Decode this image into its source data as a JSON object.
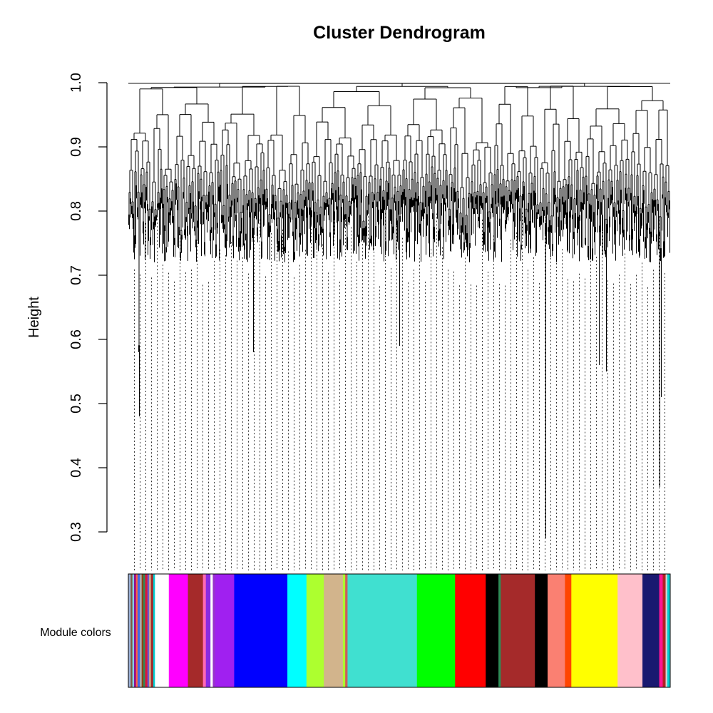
{
  "chart_data": {
    "type": "dendrogram",
    "title": "Cluster Dendrogram",
    "ylabel": "Height",
    "ylim": [
      0.3,
      1.0
    ],
    "yticks": [
      "0.3",
      "0.4",
      "0.5",
      "0.6",
      "0.7",
      "0.8",
      "0.9",
      "1.0"
    ],
    "merge_heights_min": [
      0.29,
      0.37,
      0.48,
      0.55,
      0.56,
      0.58,
      0.59
    ],
    "module_bar_label": "Module colors",
    "modules": [
      {
        "color": "#9bb0d8",
        "fraction": 0.004
      },
      {
        "color": "#7a5c3a",
        "fraction": 0.003
      },
      {
        "color": "#87ceeb",
        "fraction": 0.003
      },
      {
        "color": "#8b008b",
        "fraction": 0.003
      },
      {
        "color": "#ff6347",
        "fraction": 0.003
      },
      {
        "color": "#4169e1",
        "fraction": 0.004
      },
      {
        "color": "#b0b0b0",
        "fraction": 0.003
      },
      {
        "color": "#8b4513",
        "fraction": 0.003
      },
      {
        "color": "#2e8b57",
        "fraction": 0.003
      },
      {
        "color": "#dc143c",
        "fraction": 0.004
      },
      {
        "color": "#6a5acd",
        "fraction": 0.003
      },
      {
        "color": "#d2b48c",
        "fraction": 0.003
      },
      {
        "color": "#a52a2a",
        "fraction": 0.004
      },
      {
        "color": "#00ced1",
        "fraction": 0.003
      },
      {
        "color": "#ffffff",
        "fraction": 0.024
      },
      {
        "color": "#ff00ff",
        "fraction": 0.033
      },
      {
        "color": "#a52a2a",
        "fraction": 0.026
      },
      {
        "color": "#ff69b4",
        "fraction": 0.005
      },
      {
        "color": "#8a2be2",
        "fraction": 0.008
      },
      {
        "color": "#ffffff",
        "fraction": 0.004
      },
      {
        "color": "#9932cc",
        "fraction": 0.004
      },
      {
        "color": "#a020f0",
        "fraction": 0.033
      },
      {
        "color": "#0000ff",
        "fraction": 0.092
      },
      {
        "color": "#00ffff",
        "fraction": 0.033
      },
      {
        "color": "#adff2f",
        "fraction": 0.03
      },
      {
        "color": "#d2b48c",
        "fraction": 0.033
      },
      {
        "color": "#adff2f",
        "fraction": 0.004
      },
      {
        "color": "#cd5c5c",
        "fraction": 0.004
      },
      {
        "color": "#40e0d0",
        "fraction": 0.12
      },
      {
        "color": "#00ff00",
        "fraction": 0.066
      },
      {
        "color": "#ff0000",
        "fraction": 0.053
      },
      {
        "color": "#000000",
        "fraction": 0.022
      },
      {
        "color": "#2e8b57",
        "fraction": 0.004
      },
      {
        "color": "#a52a2a",
        "fraction": 0.059
      },
      {
        "color": "#000000",
        "fraction": 0.022
      },
      {
        "color": "#fa8072",
        "fraction": 0.03
      },
      {
        "color": "#ff4500",
        "fraction": 0.011
      },
      {
        "color": "#ffff00",
        "fraction": 0.08
      },
      {
        "color": "#ffc0cb",
        "fraction": 0.043
      },
      {
        "color": "#191970",
        "fraction": 0.029
      },
      {
        "color": "#ff1493",
        "fraction": 0.006
      },
      {
        "color": "#b22222",
        "fraction": 0.005
      },
      {
        "color": "#d3d3d3",
        "fraction": 0.003
      },
      {
        "color": "#00ced1",
        "fraction": 0.005
      }
    ]
  }
}
